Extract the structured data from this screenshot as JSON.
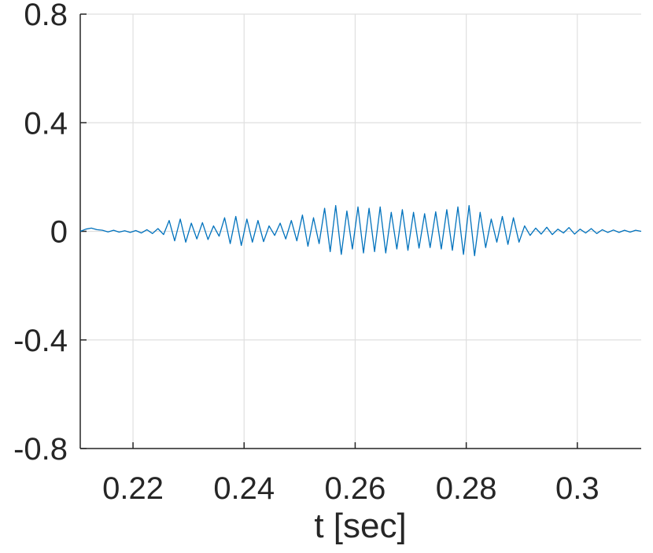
{
  "chart_data": {
    "type": "line",
    "title": "",
    "xlabel": "t [sec]",
    "ylabel": "",
    "xlim": [
      0.2105,
      0.3115
    ],
    "ylim": [
      -0.8,
      0.8
    ],
    "xticks": [
      0.22,
      0.24,
      0.26,
      0.28,
      0.3
    ],
    "xtick_labels": [
      "0.22",
      "0.24",
      "0.26",
      "0.28",
      "0.3"
    ],
    "yticks": [
      0.8,
      0.4,
      0,
      -0.4,
      -0.8
    ],
    "ytick_labels": [
      "0.8",
      "0.4",
      "0",
      "-0.4",
      "-0.8"
    ],
    "grid": true,
    "color": "#0072BD",
    "series": [
      {
        "x": [
          0.2105,
          0.2115,
          0.2125,
          0.2135,
          0.2145,
          0.2155,
          0.2165,
          0.2175,
          0.2185,
          0.2195,
          0.2205,
          0.2215,
          0.2225,
          0.2235,
          0.2245,
          0.2255,
          0.2265,
          0.2275,
          0.2285,
          0.2295,
          0.2305,
          0.2315,
          0.2325,
          0.2335,
          0.2345,
          0.2355,
          0.2365,
          0.2375,
          0.2385,
          0.2395,
          0.2405,
          0.2415,
          0.2425,
          0.2435,
          0.2445,
          0.2455,
          0.2465,
          0.2475,
          0.2485,
          0.2495,
          0.2505,
          0.2515,
          0.2525,
          0.2535,
          0.2545,
          0.2555,
          0.2565,
          0.2575,
          0.2585,
          0.2595,
          0.2605,
          0.2615,
          0.2625,
          0.2635,
          0.2645,
          0.2655,
          0.2665,
          0.2675,
          0.2685,
          0.2695,
          0.2705,
          0.2715,
          0.2725,
          0.2735,
          0.2745,
          0.2755,
          0.2765,
          0.2775,
          0.2785,
          0.2795,
          0.2805,
          0.2815,
          0.2825,
          0.2835,
          0.2845,
          0.2855,
          0.2865,
          0.2875,
          0.2885,
          0.2895,
          0.2905,
          0.2915,
          0.2925,
          0.2935,
          0.2945,
          0.2955,
          0.2965,
          0.2975,
          0.2985,
          0.2995,
          0.3005,
          0.3015,
          0.3025,
          0.3035,
          0.3045,
          0.3055,
          0.3065,
          0.3075,
          0.3085,
          0.3095,
          0.3105,
          0.3115
        ],
        "y": [
          0.0,
          0.008,
          0.012,
          0.006,
          0.004,
          -0.002,
          0.004,
          -0.003,
          0.002,
          -0.004,
          0.003,
          -0.006,
          0.006,
          -0.008,
          0.01,
          -0.012,
          0.04,
          -0.035,
          0.045,
          -0.04,
          0.03,
          -0.028,
          0.032,
          -0.03,
          0.02,
          -0.018,
          0.05,
          -0.045,
          0.055,
          -0.052,
          0.045,
          -0.04,
          0.04,
          -0.038,
          0.02,
          -0.015,
          0.03,
          -0.028,
          0.04,
          -0.035,
          0.06,
          -0.055,
          0.05,
          -0.045,
          0.085,
          -0.075,
          0.095,
          -0.085,
          0.075,
          -0.065,
          0.09,
          -0.08,
          0.085,
          -0.075,
          0.09,
          -0.08,
          0.07,
          -0.065,
          0.08,
          -0.07,
          0.07,
          -0.062,
          0.065,
          -0.06,
          0.072,
          -0.065,
          0.08,
          -0.07,
          0.09,
          -0.085,
          0.095,
          -0.09,
          0.07,
          -0.06,
          0.045,
          -0.04,
          0.055,
          -0.048,
          0.05,
          -0.04,
          0.02,
          -0.015,
          0.012,
          -0.01,
          0.015,
          -0.012,
          0.008,
          -0.006,
          0.014,
          -0.01,
          0.008,
          -0.006,
          0.01,
          -0.008,
          0.006,
          -0.004,
          0.005,
          -0.004,
          0.004,
          -0.003,
          0.004,
          0.0
        ]
      }
    ]
  }
}
